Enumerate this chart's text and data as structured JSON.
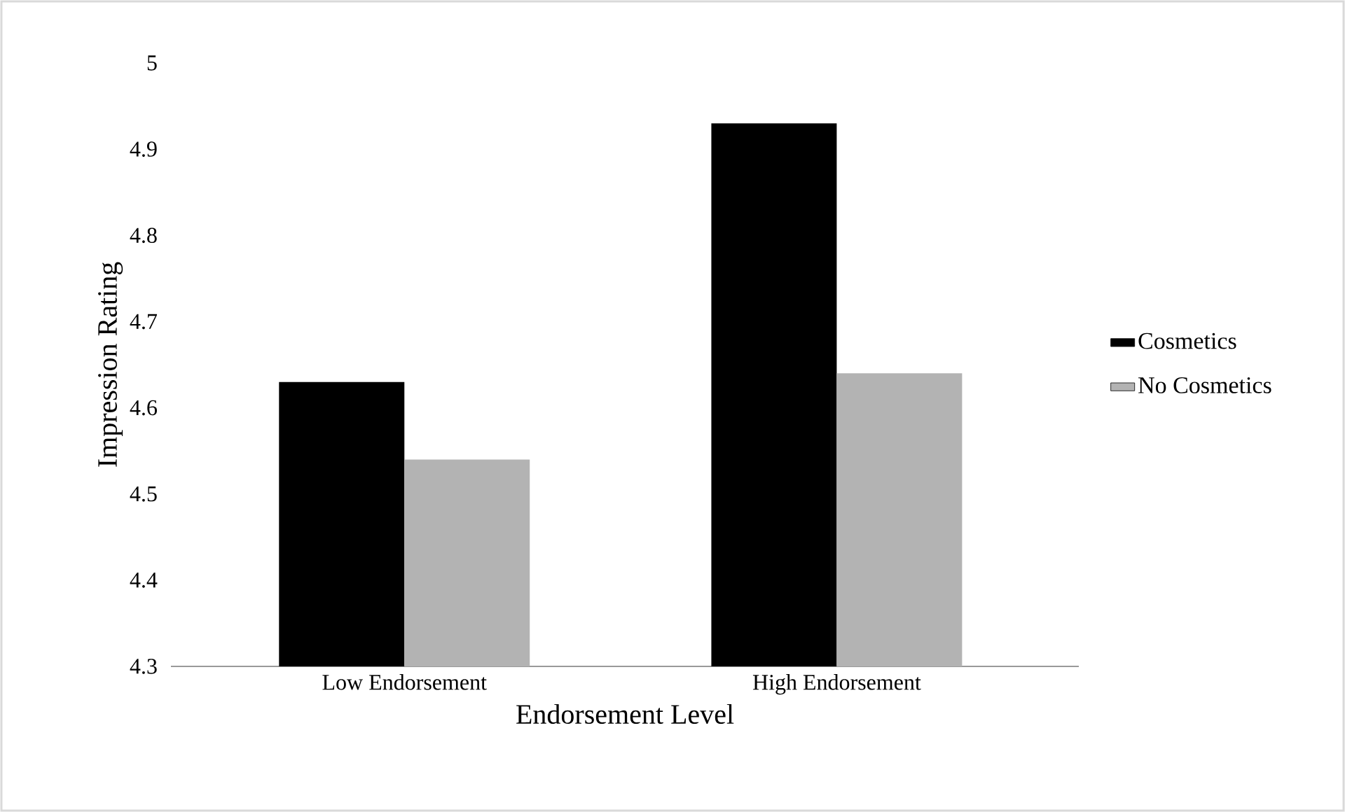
{
  "chart_data": {
    "type": "bar",
    "xlabel": "Endorsement Level",
    "ylabel": "Impression Rating",
    "categories": [
      "Low Endorsement",
      "High Endorsement"
    ],
    "series": [
      {
        "name": "Cosmetics",
        "color": "#000000",
        "values": [
          4.63,
          4.93
        ]
      },
      {
        "name": "No Cosmetics",
        "color": "#b3b3b3",
        "values": [
          4.54,
          4.64
        ]
      }
    ],
    "ylim": [
      4.3,
      5
    ],
    "yticks": [
      4.3,
      4.4,
      4.5,
      4.6,
      4.7,
      4.8,
      4.9,
      5
    ],
    "grid": false,
    "legend": "right"
  }
}
